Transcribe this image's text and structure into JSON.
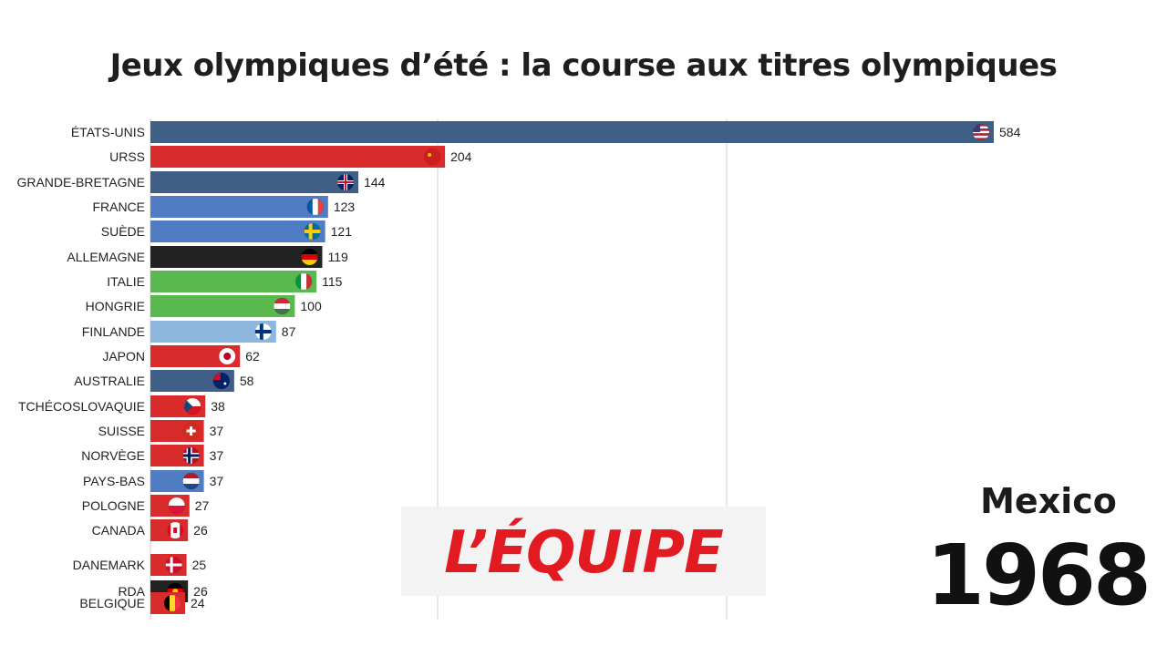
{
  "title": "Jeux olympiques d’été : la course aux titres olympiques",
  "city": "Mexico",
  "year": "1968",
  "logo_text": "L’ÉQUIPE",
  "chart_data": {
    "type": "bar",
    "orientation": "horizontal",
    "title": "Jeux olympiques d’été : la course aux titres olympiques",
    "grid": true,
    "xlim": [
      0,
      620
    ],
    "categories": [
      "ÉTATS-UNIS",
      "URSS",
      "GRANDE-BRETAGNE",
      "FRANCE",
      "SUÈDE",
      "ALLEMAGNE",
      "ITALIE",
      "HONGRIE",
      "FINLANDE",
      "JAPON",
      "AUSTRALIE",
      "TCHÉCOSLOVAQUIE",
      "SUISSE",
      "NORVÈGE",
      "PAYS-BAS",
      "POLOGNE",
      "CANADA",
      "DANEMARK",
      "RDA",
      "BELGIQUE"
    ],
    "values": [
      584,
      204,
      144,
      123,
      121,
      119,
      115,
      100,
      87,
      62,
      58,
      38,
      37,
      37,
      37,
      27,
      26,
      25,
      26,
      24
    ],
    "colors": [
      "#3f5f87",
      "#d92b2b",
      "#3f5f87",
      "#4f7cc2",
      "#4f7cc2",
      "#222222",
      "#59b84e",
      "#59b84e",
      "#8db7df",
      "#d92b2b",
      "#3f5f87",
      "#d92b2b",
      "#d92b2b",
      "#d92b2b",
      "#4f7cc2",
      "#d92b2b",
      "#d92b2b",
      "#d92b2b",
      "#222222",
      "#d92b2b"
    ],
    "icons": [
      "flag-usa-icon",
      "flag-urss-icon",
      "flag-uk-icon",
      "flag-france-icon",
      "flag-sweden-icon",
      "flag-germany-icon",
      "flag-italy-icon",
      "flag-hungary-icon",
      "flag-finland-icon",
      "flag-japan-icon",
      "flag-australia-icon",
      "flag-czech-icon",
      "flag-switzerland-icon",
      "flag-norway-icon",
      "flag-netherlands-icon",
      "flag-poland-icon",
      "flag-canada-icon",
      "flag-denmark-icon",
      "flag-rda-icon",
      "flag-belgium-icon"
    ]
  }
}
